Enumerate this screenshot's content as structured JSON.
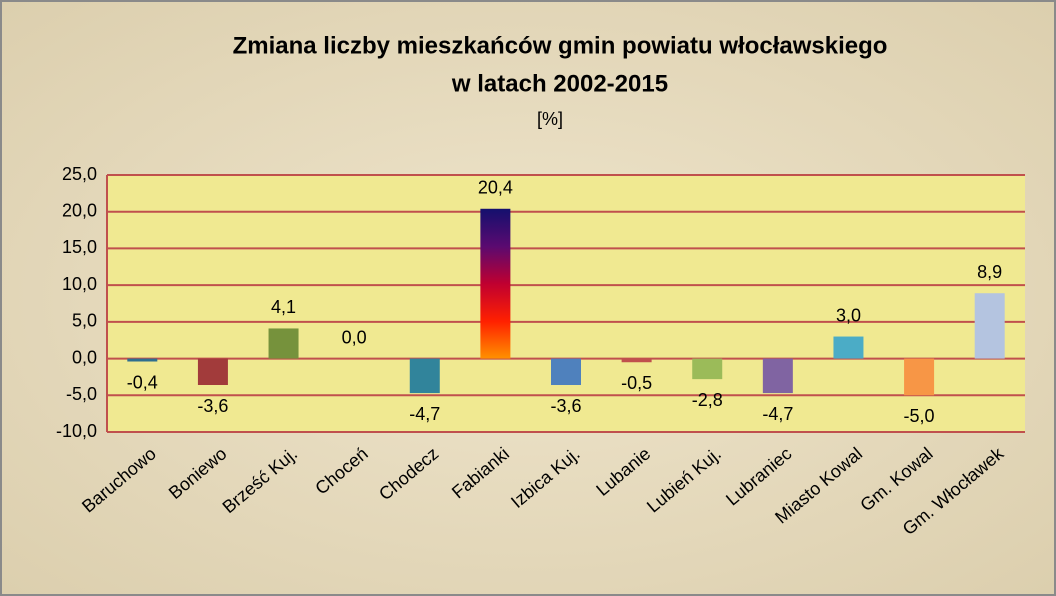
{
  "chart_data": {
    "type": "bar",
    "title": [
      "Zmiana liczby mieszkańców gmin powiatu włocławskiego",
      "w latach 2002-2015"
    ],
    "subtitle": "[%]",
    "categories": [
      "Baruchowo",
      "Boniewo",
      "Brześć Kuj.",
      "Choceń",
      "Chodecz",
      "Fabianki",
      "Izbica Kuj.",
      "Lubanie",
      "Lubień Kuj.",
      "Lubraniec",
      "Miasto Kowal",
      "Gm. Kowal",
      "Gm. Włocławek"
    ],
    "values": [
      -0.4,
      -3.6,
      4.1,
      0.0,
      -4.7,
      20.4,
      -3.6,
      -0.5,
      -2.8,
      -4.7,
      3.0,
      -5.0,
      8.9
    ],
    "value_labels": [
      "-0,4",
      "-3,6",
      "4,1",
      "0,0",
      "-4,7",
      "20,4",
      "-3,6",
      "-0,5",
      "-2,8",
      "-4,7",
      "3,0",
      "-5,0",
      "8,9"
    ],
    "colors": [
      "#2f6f8f",
      "#a23b3b",
      "#76923c",
      "#888888",
      "#31849b",
      [
        "#14106e",
        "#5a0a70",
        "#c00030",
        "#ff2000",
        "#ff9000"
      ],
      "#4f81bd",
      "#c0504d",
      "#9bbb59",
      "#8064a2",
      "#4bacc6",
      "#f79646",
      "#b4c4e0"
    ],
    "ylim": [
      -10,
      25
    ],
    "yticks": [
      {
        "value": -10,
        "label": "-10,0"
      },
      {
        "value": -5,
        "label": "-5,0"
      },
      {
        "value": 0,
        "label": "0,0"
      },
      {
        "value": 5,
        "label": "5,0"
      },
      {
        "value": 10,
        "label": "10,0"
      },
      {
        "value": 15,
        "label": "15,0"
      },
      {
        "value": 20,
        "label": "20,0"
      },
      {
        "value": 25,
        "label": "25,0"
      }
    ],
    "grid": true
  }
}
